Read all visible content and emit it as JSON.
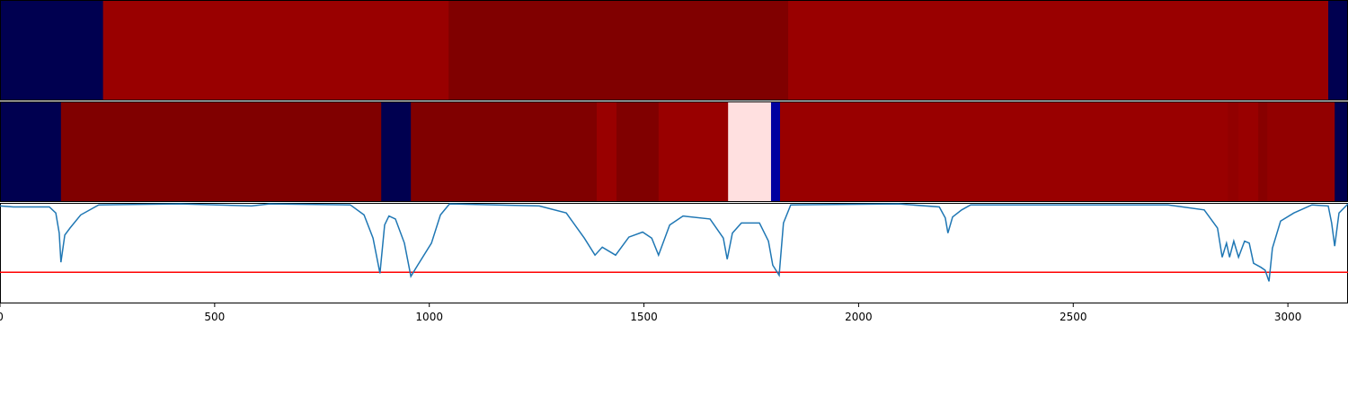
{
  "chart_data": {
    "type": "line",
    "xlim": [
      0,
      3140
    ],
    "ylim": [
      0,
      1
    ],
    "xticks": [
      0,
      500,
      1000,
      1500,
      2000,
      2500,
      3000
    ],
    "strips": [
      {
        "segments": [
          {
            "start": 0,
            "end": 240,
            "color": "#000050"
          },
          {
            "start": 240,
            "end": 1045,
            "color": "#990000"
          },
          {
            "start": 1045,
            "end": 1836,
            "color": "#800000"
          },
          {
            "start": 1836,
            "end": 3094,
            "color": "#990000"
          },
          {
            "start": 3094,
            "end": 3140,
            "color": "#000050"
          }
        ]
      },
      {
        "segments": [
          {
            "start": 0,
            "end": 142,
            "color": "#000050"
          },
          {
            "start": 142,
            "end": 888,
            "color": "#800000"
          },
          {
            "start": 888,
            "end": 957,
            "color": "#000050"
          },
          {
            "start": 957,
            "end": 1390,
            "color": "#800000"
          },
          {
            "start": 1390,
            "end": 1436,
            "color": "#990000"
          },
          {
            "start": 1436,
            "end": 1534,
            "color": "#800000"
          },
          {
            "start": 1534,
            "end": 1696,
            "color": "#990000"
          },
          {
            "start": 1696,
            "end": 1796,
            "color": "#ffe0e0"
          },
          {
            "start": 1796,
            "end": 1817,
            "color": "#0000a0"
          },
          {
            "start": 1817,
            "end": 2860,
            "color": "#990000"
          },
          {
            "start": 2860,
            "end": 2885,
            "color": "#920000"
          },
          {
            "start": 2885,
            "end": 2931,
            "color": "#990000"
          },
          {
            "start": 2931,
            "end": 2952,
            "color": "#880000"
          },
          {
            "start": 2952,
            "end": 3109,
            "color": "#920000"
          },
          {
            "start": 3109,
            "end": 3140,
            "color": "#000050"
          }
        ]
      }
    ],
    "threshold": 0.31,
    "threshold_color": "#ff0000",
    "series": [
      {
        "color": "#1f77b4",
        "x": [
          0,
          31,
          115,
          130,
          138,
          142,
          151,
          163,
          188,
          230,
          419,
          586,
          628,
          816,
          848,
          869,
          885,
          896,
          906,
          921,
          942,
          957,
          973,
          1005,
          1026,
          1047,
          1256,
          1319,
          1361,
          1386,
          1403,
          1434,
          1465,
          1497,
          1518,
          1534,
          1560,
          1591,
          1654,
          1685,
          1694,
          1706,
          1727,
          1769,
          1790,
          1800,
          1815,
          1825,
          1842,
          2093,
          2188,
          2202,
          2208,
          2219,
          2240,
          2261,
          2721,
          2805,
          2836,
          2847,
          2857,
          2864,
          2874,
          2885,
          2899,
          2910,
          2920,
          2937,
          2947,
          2956,
          2964,
          2983,
          3014,
          3056,
          3094,
          3102,
          3109,
          3119,
          3140
        ],
        "values": [
          0.97,
          0.96,
          0.96,
          0.9,
          0.7,
          0.41,
          0.68,
          0.75,
          0.88,
          0.98,
          0.99,
          0.97,
          0.99,
          0.98,
          0.88,
          0.65,
          0.3,
          0.78,
          0.87,
          0.84,
          0.6,
          0.27,
          0.38,
          0.6,
          0.88,
          0.99,
          0.97,
          0.9,
          0.65,
          0.48,
          0.56,
          0.48,
          0.66,
          0.71,
          0.65,
          0.48,
          0.78,
          0.87,
          0.84,
          0.65,
          0.44,
          0.7,
          0.8,
          0.8,
          0.62,
          0.38,
          0.28,
          0.8,
          0.98,
          0.99,
          0.96,
          0.85,
          0.7,
          0.86,
          0.93,
          0.98,
          0.98,
          0.93,
          0.75,
          0.46,
          0.6,
          0.46,
          0.62,
          0.46,
          0.62,
          0.6,
          0.4,
          0.36,
          0.33,
          0.22,
          0.55,
          0.82,
          0.9,
          0.98,
          0.97,
          0.8,
          0.57,
          0.9,
          0.99
        ]
      }
    ]
  }
}
